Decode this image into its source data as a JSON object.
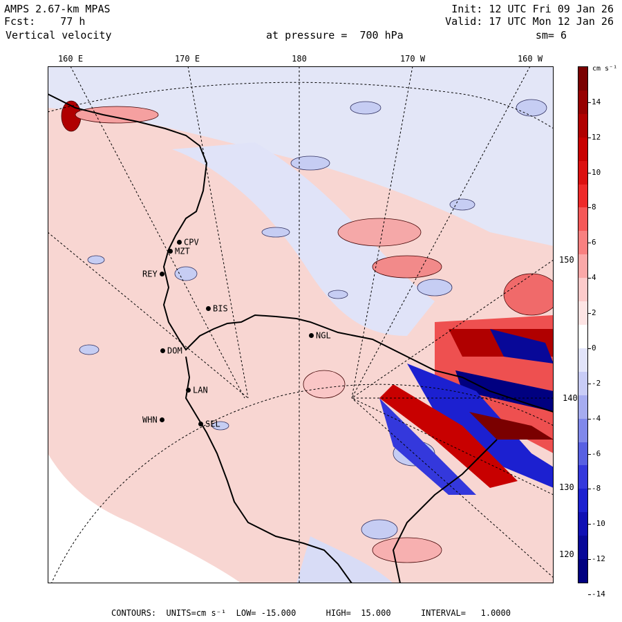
{
  "header": {
    "model": "AMPS 2.67-km MPAS",
    "fcst_label": "Fcst:",
    "fcst_value": "77 h",
    "field": "Vertical velocity",
    "pressure_text": "at pressure =  700 hPa",
    "init": "Init: 12 UTC Fri 09 Jan 26",
    "valid": "Valid: 17 UTC Mon 12 Jan 26",
    "smoothing": "sm= 6"
  },
  "longitude_labels": [
    "160 E",
    "170 E",
    "180",
    "170 W",
    "160 W"
  ],
  "latitude_labels": [
    "150 W",
    "140 W",
    "130 W",
    "120 W"
  ],
  "stations": [
    "CPV",
    "MZT",
    "REY",
    "BIS",
    "DOM",
    "LAN",
    "WHN",
    "SEL",
    "NGL"
  ],
  "colorbar": {
    "units": "cm s⁻¹",
    "tick_labels": [
      "14",
      "12",
      "10",
      "8",
      "6",
      "4",
      "2",
      "0",
      "-2",
      "-4",
      "-6",
      "-8",
      "-10",
      "-12",
      "-14"
    ],
    "colors": [
      "#7a0000",
      "#960000",
      "#b00000",
      "#c80000",
      "#dc1010",
      "#ee2a2a",
      "#f55858",
      "#f88080",
      "#faa8a8",
      "#fccaca",
      "#fde4e4",
      "#ffffff",
      "#e2e4fa",
      "#c8ccf6",
      "#a6acf0",
      "#8088ea",
      "#5860e2",
      "#3438dc",
      "#1c20d0",
      "#1010b4",
      "#080898",
      "#000080"
    ],
    "positive_color": "#f8c8c4",
    "negative_color": "#c6cdf3"
  },
  "footer": "CONTOURS:  UNITS=cm s⁻¹  LOW= -15.000      HIGH=  15.000      INTERVAL=   1.0000"
}
